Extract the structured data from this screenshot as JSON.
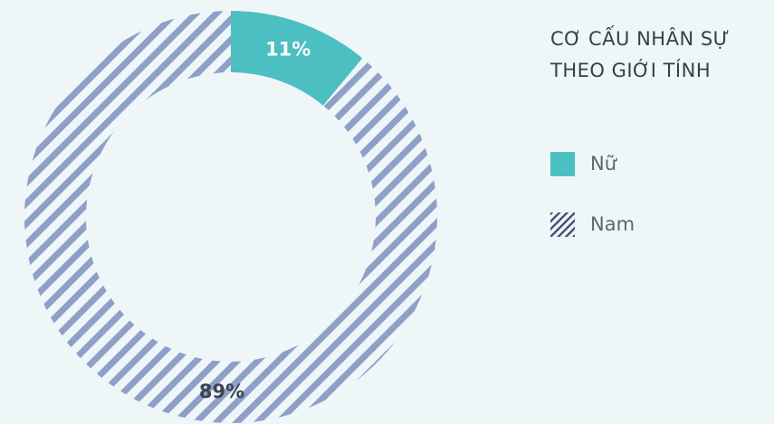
{
  "chart_data": {
    "type": "pie",
    "title_lines": [
      "CƠ CẤU NHÂN SỰ",
      "THEO GIỚI TÍNH"
    ],
    "slices": [
      {
        "label": "Nữ",
        "value": 11,
        "display": "11%",
        "color": "#4bbfc2",
        "pattern": "solid"
      },
      {
        "label": "Nam",
        "value": 89,
        "display": "89%",
        "color": "#8e9fc8",
        "pattern": "diagonal-stripes"
      }
    ],
    "legend_position": "right"
  }
}
